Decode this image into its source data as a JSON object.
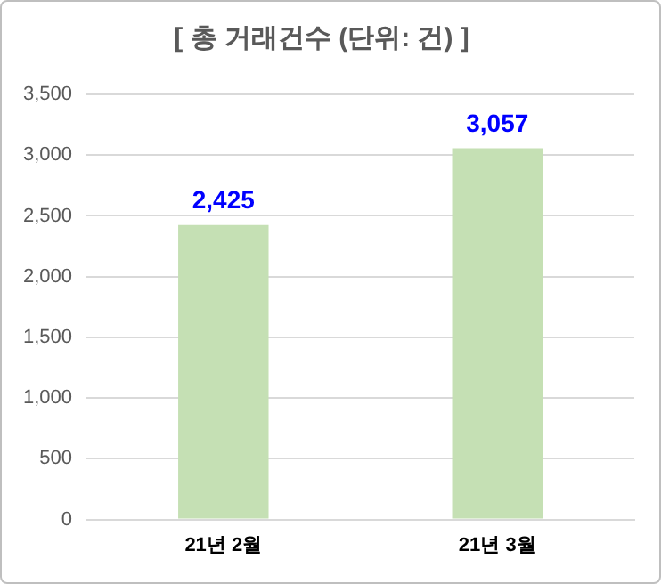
{
  "chart_data": {
    "type": "bar",
    "title": "[ 총 거래건수 (단위: 건) ]",
    "categories": [
      "21년 2월",
      "21년 3월"
    ],
    "values": [
      2425,
      3057
    ],
    "value_labels": [
      "2,425",
      "3,057"
    ],
    "color": "#c5e0b4",
    "ylim": [
      0,
      3500
    ],
    "yticks": [
      0,
      500,
      {
        "value": 1000,
        "label": "1,000"
      },
      {
        "value": 1500,
        "label": "1,500"
      },
      {
        "value": 2000,
        "label": "2,000"
      },
      {
        "value": 2500,
        "label": "2,500"
      },
      {
        "value": 3000,
        "label": "3,000"
      },
      {
        "value": 3500,
        "label": "3,500"
      }
    ],
    "grid": "y"
  }
}
